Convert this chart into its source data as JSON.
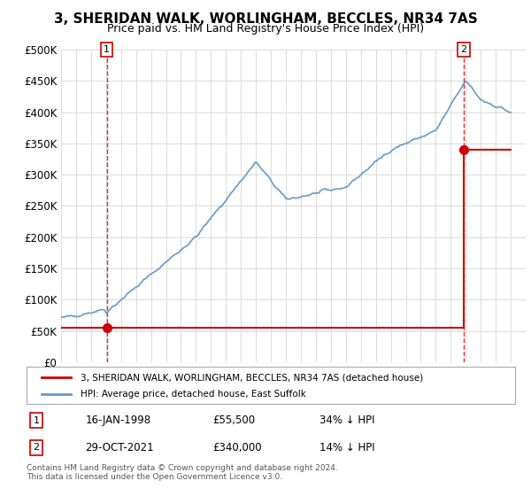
{
  "title": "3, SHERIDAN WALK, WORLINGHAM, BECCLES, NR34 7AS",
  "subtitle": "Price paid vs. HM Land Registry's House Price Index (HPI)",
  "legend_line1": "3, SHERIDAN WALK, WORLINGHAM, BECCLES, NR34 7AS (detached house)",
  "legend_line2": "HPI: Average price, detached house, East Suffolk",
  "annotation1_label": "1",
  "annotation1_date": "16-JAN-1998",
  "annotation1_price": "£55,500",
  "annotation1_hpi": "34% ↓ HPI",
  "annotation2_label": "2",
  "annotation2_date": "29-OCT-2021",
  "annotation2_price": "£340,000",
  "annotation2_hpi": "14% ↓ HPI",
  "footnote": "Contains HM Land Registry data © Crown copyright and database right 2024.\nThis data is licensed under the Open Government Licence v3.0.",
  "sale_color": "#cc0000",
  "hpi_color": "#6699cc",
  "sale_marker_color": "#cc0000",
  "ylim": [
    0,
    500000
  ],
  "yticks": [
    0,
    50000,
    100000,
    150000,
    200000,
    250000,
    300000,
    350000,
    400000,
    450000,
    500000
  ],
  "ytick_labels": [
    "£0",
    "£50K",
    "£100K",
    "£150K",
    "£200K",
    "£250K",
    "£300K",
    "£350K",
    "£400K",
    "£450K",
    "£500K"
  ],
  "background_color": "#ffffff",
  "grid_color": "#dddddd"
}
